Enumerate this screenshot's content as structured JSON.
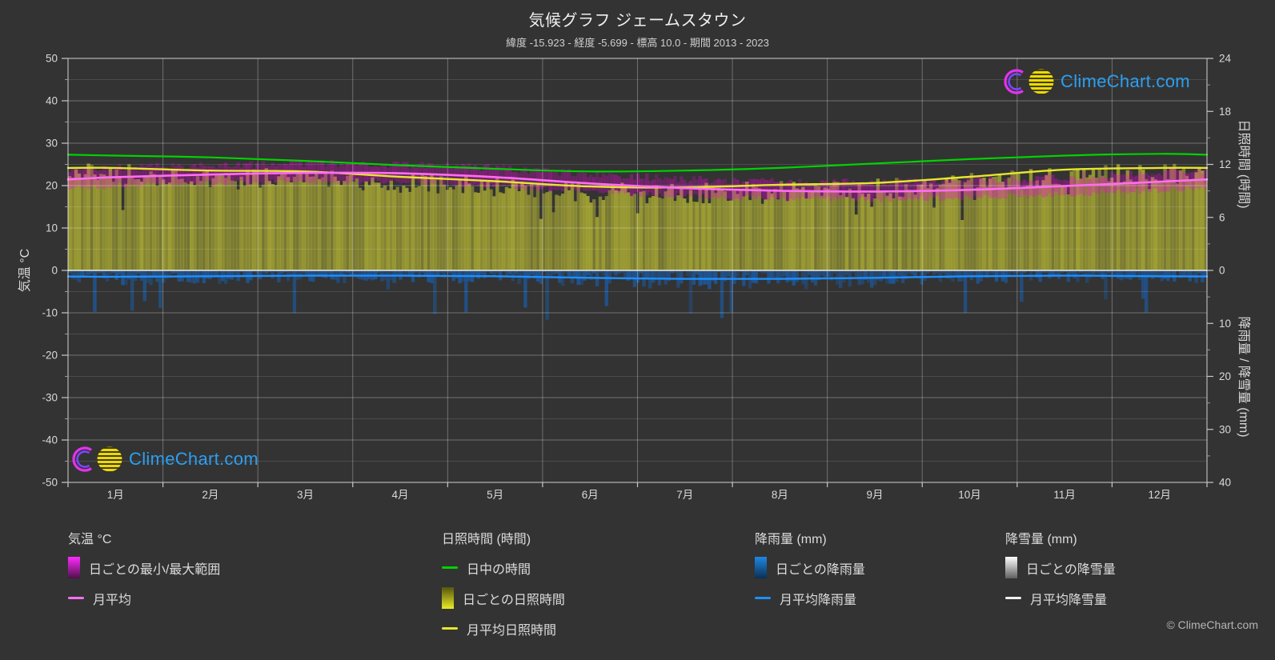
{
  "title": "気候グラフ ジェームスタウン",
  "subtitle": "緯度 -15.923 - 経度 -5.699 - 標高 10.0 - 期間 2013 - 2023",
  "watermark": "ClimeChart.com",
  "copyright": "© ClimeChart.com",
  "axes": {
    "left_label": "気温 °C",
    "right_top_label": "日照時間 (時間)",
    "right_bottom_label": "降雨量 / 降雪量 (mm)",
    "temp_ticks": [
      50,
      40,
      30,
      20,
      10,
      0,
      -10,
      -20,
      -30,
      -40,
      -50
    ],
    "sun_ticks": [
      24,
      18,
      12,
      6,
      0
    ],
    "precip_ticks": [
      10,
      20,
      30,
      40
    ]
  },
  "chart_data": {
    "type": "line",
    "title": "気候グラフ ジェームスタウン",
    "categories": [
      "1月",
      "2月",
      "3月",
      "4月",
      "5月",
      "6月",
      "7月",
      "8月",
      "9月",
      "10月",
      "11月",
      "12月"
    ],
    "temp_axis": {
      "label": "気温 °C",
      "range": [
        -50,
        50
      ]
    },
    "sun_axis": {
      "label": "日照時間 (時間)",
      "range": [
        0,
        24
      ]
    },
    "precip_axis": {
      "label": "降雨量 / 降雪量 (mm)",
      "range": [
        0,
        40
      ],
      "direction": "down"
    },
    "grid": true,
    "legend_position": "bottom",
    "series": [
      {
        "key": "daylight",
        "name": "日中の時間",
        "axis": "sun_hours",
        "style": "line",
        "color": "#00d200",
        "values": [
          13.0,
          12.8,
          12.4,
          11.9,
          11.5,
          11.2,
          11.3,
          11.6,
          12.1,
          12.6,
          13.0,
          13.2
        ]
      },
      {
        "key": "sun_daily",
        "name": "日ごとの日照時間",
        "axis": "sun_hours",
        "style": "daily-bars-up",
        "color": "#a8a835",
        "values": [
          12.1,
          11.8,
          11.7,
          11.1,
          10.6,
          10.0,
          9.9,
          10.2,
          10.4,
          11.1,
          11.9,
          12.1
        ]
      },
      {
        "key": "sun_mean",
        "name": "月平均日照時間",
        "axis": "sun_hours",
        "style": "line",
        "color": "#e6e62e",
        "values": [
          11.6,
          11.3,
          11.2,
          10.6,
          10.1,
          9.5,
          9.4,
          9.7,
          9.9,
          10.6,
          11.4,
          11.6
        ]
      },
      {
        "key": "temp_range",
        "name": "日ごとの最小/最大範囲",
        "axis": "temp_c",
        "style": "daily-band",
        "color": "#ff00e6",
        "max": [
          24.3,
          24.8,
          25.2,
          25.0,
          24.2,
          22.7,
          21.5,
          20.9,
          20.7,
          21.1,
          22.0,
          23.1
        ],
        "min": [
          20.0,
          20.6,
          21.0,
          20.9,
          20.0,
          18.5,
          17.5,
          16.9,
          16.7,
          17.1,
          18.0,
          19.0
        ]
      },
      {
        "key": "temp_mean",
        "name": "月平均",
        "axis": "temp_c",
        "style": "line",
        "color": "#ff6ef2",
        "values": [
          22.0,
          22.6,
          23.0,
          22.9,
          22.0,
          20.5,
          19.4,
          18.8,
          18.6,
          19.0,
          19.9,
          20.9
        ]
      },
      {
        "key": "rain_daily",
        "name": "日ごとの降雨量",
        "axis": "precip_mm",
        "style": "daily-bars-down",
        "color": "#1565c0",
        "values": [
          1.2,
          1.1,
          1.0,
          1.0,
          1.1,
          1.4,
          1.6,
          1.6,
          1.4,
          1.1,
          1.0,
          1.1
        ]
      },
      {
        "key": "rain_mean",
        "name": "月平均降雨量",
        "axis": "precip_mm",
        "style": "line",
        "color": "#1e90ff",
        "values": [
          1.2,
          1.1,
          1.0,
          1.0,
          1.1,
          1.4,
          1.6,
          1.6,
          1.4,
          1.1,
          1.0,
          1.1
        ]
      },
      {
        "key": "snow_mean",
        "name": "月平均降雪量",
        "axis": "precip_mm",
        "style": "line",
        "color": "#d9d9d9",
        "values": [
          0,
          0,
          0,
          0,
          0,
          0,
          0,
          0,
          0,
          0,
          0,
          0
        ]
      }
    ]
  },
  "legend": {
    "columns": [
      {
        "header": "気温 °C",
        "items": [
          {
            "type": "gradient",
            "from": "#ff2bff",
            "to": "#4d1049",
            "label": "日ごとの最小/最大範囲"
          },
          {
            "type": "line",
            "color": "#ff6ef2",
            "label": "月平均"
          }
        ]
      },
      {
        "header": "日照時間 (時間)",
        "items": [
          {
            "type": "line",
            "color": "#00d200",
            "label": "日中の時間"
          },
          {
            "type": "gradient",
            "from": "#55550f",
            "to": "#eaea25",
            "label": "日ごとの日照時間"
          },
          {
            "type": "line",
            "color": "#e6e62e",
            "label": "月平均日照時間"
          }
        ]
      },
      {
        "header": "降雨量 (mm)",
        "items": [
          {
            "type": "gradient",
            "from": "#1e88e5",
            "to": "#0c2f52",
            "label": "日ごとの降雨量"
          },
          {
            "type": "line",
            "color": "#1e90ff",
            "label": "月平均降雨量"
          }
        ]
      },
      {
        "header": "降雪量 (mm)",
        "items": [
          {
            "type": "gradient",
            "from": "#ffffff",
            "to": "#5f5f5f",
            "label": "日ごとの降雪量"
          },
          {
            "type": "line",
            "color": "#f0f0f0",
            "label": "月平均降雪量"
          }
        ]
      }
    ]
  },
  "colors": {
    "background": "#333333",
    "grid_major": "rgba(255,255,255,0.30)",
    "grid_minor": "rgba(255,255,255,0.12)",
    "axis_text": "#d9d9d9",
    "logo_blue": "#2b9ff2",
    "logo_ring_outer": "#e531f2",
    "logo_ring_inner": "#7a46ff",
    "logo_ball": "#ecd90b"
  }
}
